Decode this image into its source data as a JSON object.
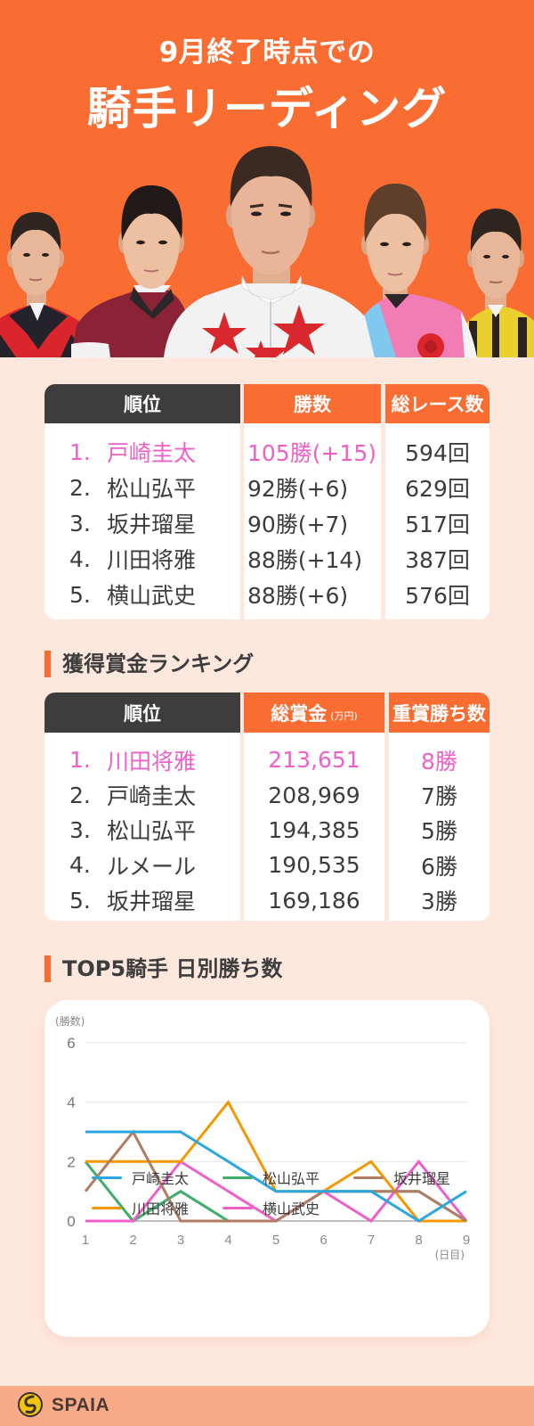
{
  "header": {
    "subtitle": "9月終了時点での",
    "title": "騎手リーディング"
  },
  "hero_photos": [
    {
      "position": "far-left",
      "jersey_colors": [
        "#D9252B",
        "#24222A"
      ]
    },
    {
      "position": "left",
      "jersey_colors": [
        "#8C2236",
        "#FFFFFF"
      ]
    },
    {
      "position": "center",
      "jersey_colors": [
        "#F2F2F2",
        "#D8282E"
      ]
    },
    {
      "position": "right",
      "jersey_colors": [
        "#F27DB5",
        "#7FC8EE"
      ]
    },
    {
      "position": "far-right",
      "jersey_colors": [
        "#EAD02E",
        "#2B2322"
      ]
    }
  ],
  "leading_table": {
    "headers": {
      "rank": "順位",
      "wins": "勝数",
      "races": "総レース数"
    },
    "rows": [
      {
        "rank": "1.",
        "name": "戸崎圭太",
        "wins": "105勝(+15)",
        "races": "594回",
        "highlight": true
      },
      {
        "rank": "2.",
        "name": "松山弘平",
        "wins": "92勝(+6)",
        "races": "629回",
        "highlight": false
      },
      {
        "rank": "3.",
        "name": "坂井瑠星",
        "wins": "90勝(+7)",
        "races": "517回",
        "highlight": false
      },
      {
        "rank": "4.",
        "name": "川田将雅",
        "wins": "88勝(+14)",
        "races": "387回",
        "highlight": false
      },
      {
        "rank": "5.",
        "name": "横山武史",
        "wins": "88勝(+6)",
        "races": "576回",
        "highlight": false
      }
    ]
  },
  "prize_section": {
    "title": "獲得賞金ランキング"
  },
  "prize_table": {
    "headers": {
      "rank": "順位",
      "prize": "総賞金",
      "prize_unit": "(万円)",
      "graded_wins": "重賞勝ち数"
    },
    "rows": [
      {
        "rank": "1.",
        "name": "川田将雅",
        "prize": "213,651",
        "graded_wins": "8勝",
        "highlight": true
      },
      {
        "rank": "2.",
        "name": "戸崎圭太",
        "prize": "208,969",
        "graded_wins": "7勝",
        "highlight": false
      },
      {
        "rank": "3.",
        "name": "松山弘平",
        "prize": "194,385",
        "graded_wins": "5勝",
        "highlight": false
      },
      {
        "rank": "4.",
        "name": "ルメール",
        "prize": "190,535",
        "graded_wins": "6勝",
        "highlight": false
      },
      {
        "rank": "5.",
        "name": "坂井瑠星",
        "prize": "169,186",
        "graded_wins": "3勝",
        "highlight": false
      }
    ]
  },
  "chart_section": {
    "title": "TOP5騎手 日別勝ち数"
  },
  "chart_data": {
    "type": "line",
    "title": "TOP5騎手 日別勝ち数",
    "xlabel": "(日目)",
    "ylabel": "(勝数)",
    "x": [
      1,
      2,
      3,
      4,
      5,
      6,
      7,
      8,
      9
    ],
    "ylim": [
      0,
      6
    ],
    "yticks": [
      0,
      2,
      4,
      6
    ],
    "grid": true,
    "legend_position": "bottom",
    "series": [
      {
        "name": "戸崎圭太",
        "color": "#2AA7DF",
        "values": [
          3,
          3,
          3,
          2,
          1,
          1,
          1,
          0,
          1
        ]
      },
      {
        "name": "松山弘平",
        "color": "#3DAE6B",
        "values": [
          2,
          0,
          1,
          0,
          0,
          1,
          1,
          1,
          0
        ]
      },
      {
        "name": "坂井瑠星",
        "color": "#B07D62",
        "values": [
          1,
          3,
          0,
          0,
          0,
          1,
          1,
          1,
          0
        ]
      },
      {
        "name": "川田将雅",
        "color": "#F39800",
        "values": [
          2,
          2,
          2,
          4,
          1,
          1,
          2,
          0,
          0
        ]
      },
      {
        "name": "横山武史",
        "color": "#EE5FC9",
        "values": [
          0,
          0,
          2,
          1,
          0,
          1,
          0,
          2,
          0
        ]
      }
    ]
  },
  "footer": {
    "brand": "SPAIA"
  },
  "colors": {
    "accent_orange": "#F96D33",
    "header_dark": "#3D3D3D",
    "highlight_pink": "#EE5FC9",
    "page_background": "#FEE8DE",
    "footer_background": "#F9AB89"
  }
}
